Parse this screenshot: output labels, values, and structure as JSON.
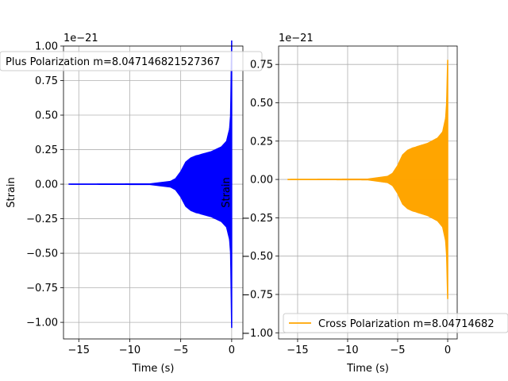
{
  "chart_data": [
    {
      "type": "line",
      "xlabel": "Time (s)",
      "ylabel": "Strain",
      "offset_label": "1e−21",
      "xlim": [
        -16.5,
        1.1
      ],
      "ylim": [
        -1.12,
        1.0
      ],
      "xticks": [
        -15,
        -10,
        -5,
        0
      ],
      "xtick_labels": [
        "−15",
        "−10",
        "−5",
        "0"
      ],
      "yticks": [
        1.0,
        0.75,
        0.5,
        0.25,
        0.0,
        -0.25,
        -0.5,
        -0.75,
        -1.0
      ],
      "ytick_labels": [
        "1.00",
        "0.75",
        "0.50",
        "0.25",
        "0.00",
        "−0.25",
        "−0.50",
        "−0.75",
        "−1.00"
      ],
      "grid": true,
      "legend_placement": "top-left",
      "series": [
        {
          "name": "Plus Polarization m=8.047146821527367",
          "color": "#0000ff",
          "envelope_t": [
            -16,
            -8,
            -6,
            -5.5,
            -5,
            -4.5,
            -4,
            -3.5,
            -3.2,
            -3,
            -2,
            -1,
            -0.5,
            -0.2,
            -0.1,
            0
          ],
          "envelope_amp": [
            0.0,
            0.002,
            0.02,
            0.04,
            0.09,
            0.16,
            0.19,
            0.205,
            0.21,
            0.215,
            0.235,
            0.27,
            0.31,
            0.4,
            0.5,
            1.04
          ]
        }
      ]
    },
    {
      "type": "line",
      "xlabel": "Time (s)",
      "ylabel": "Strain",
      "offset_label": "1e−21",
      "xlim": [
        -16.9,
        0.95
      ],
      "ylim": [
        -1.04,
        0.87
      ],
      "xticks": [
        -15,
        -10,
        -5,
        0
      ],
      "xtick_labels": [
        "−15",
        "−10",
        "−5",
        "0"
      ],
      "yticks": [
        0.75,
        0.5,
        0.25,
        0.0,
        -0.25,
        -0.5,
        -0.75,
        -1.0
      ],
      "ytick_labels": [
        "0.75",
        "0.50",
        "0.25",
        "0.00",
        "−0.25",
        "−0.50",
        "−0.75",
        "−1.00"
      ],
      "grid": true,
      "legend_placement": "bottom-left",
      "series": [
        {
          "name": "Cross Polarization m=8.04714682",
          "color": "#ffa500",
          "envelope_t": [
            -16,
            -8,
            -6,
            -5.5,
            -5,
            -4.5,
            -4,
            -3.5,
            -3.2,
            -3,
            -2,
            -1,
            -0.5,
            -0.2,
            -0.1,
            0
          ],
          "envelope_amp": [
            0.0,
            0.002,
            0.02,
            0.04,
            0.09,
            0.16,
            0.19,
            0.205,
            0.21,
            0.215,
            0.235,
            0.27,
            0.31,
            0.4,
            0.5,
            0.78
          ]
        }
      ]
    }
  ]
}
